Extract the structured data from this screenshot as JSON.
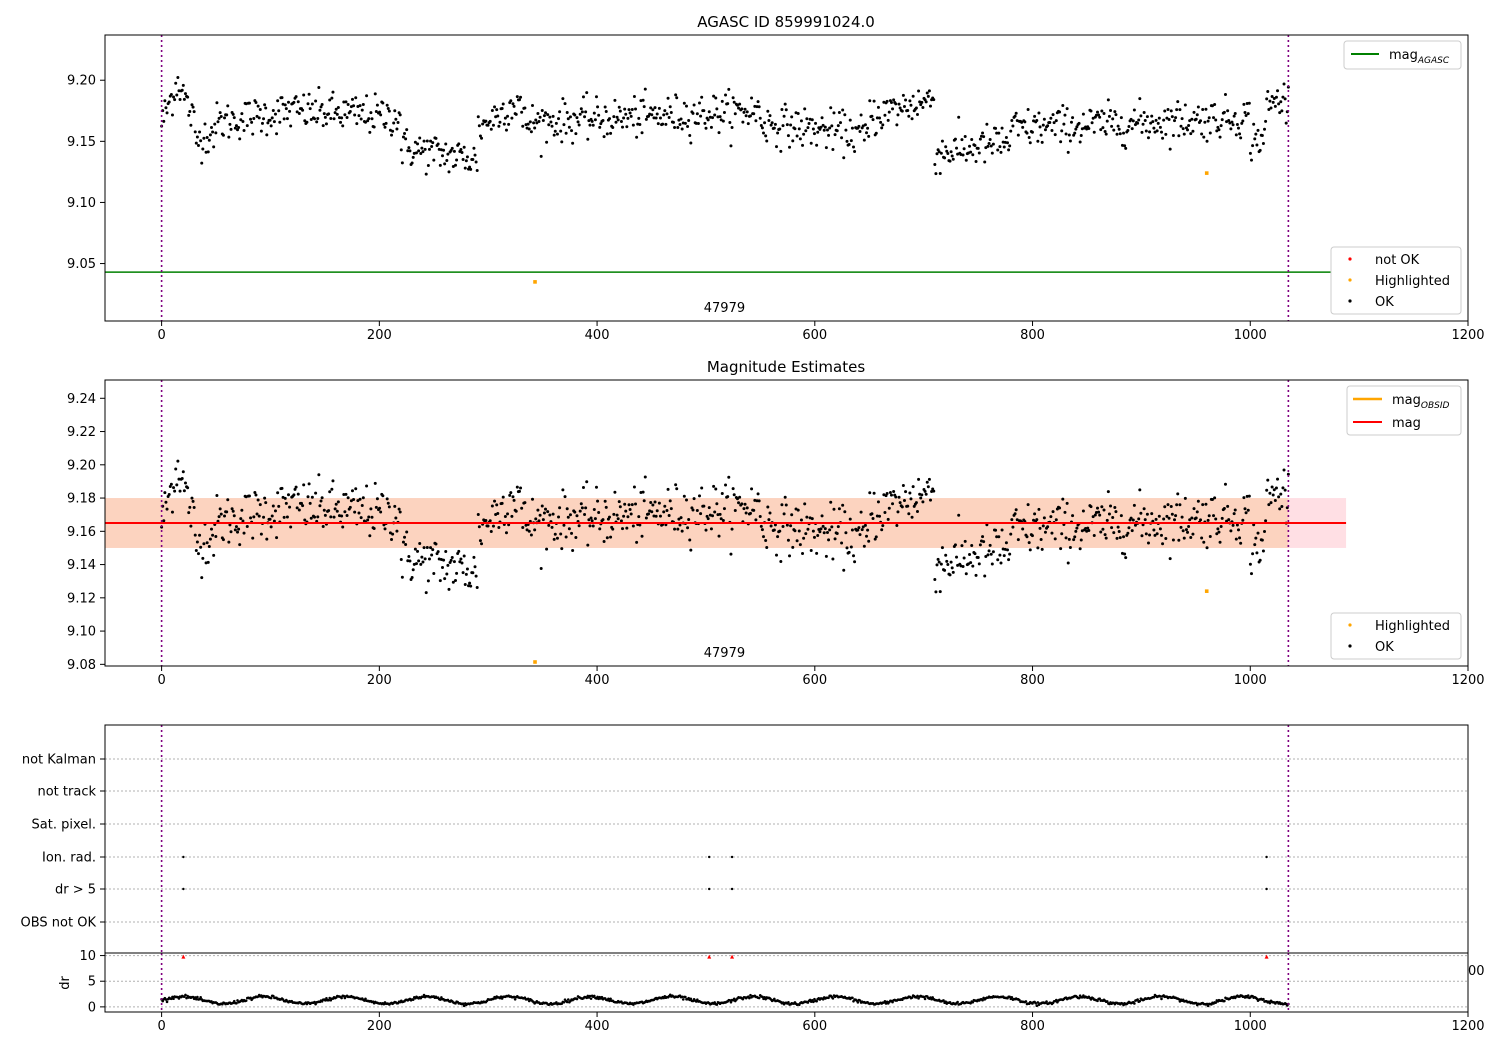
{
  "panel1": {
    "title": "AGASC ID 859991024.0",
    "obsid_label": "47979",
    "legend_lines": [
      {
        "label": "mag",
        "sub": "AGASC",
        "color": "#008000"
      }
    ],
    "legend_markers": [
      {
        "label": "not OK",
        "color": "#ff0000"
      },
      {
        "label": "Highlighted",
        "color": "#ffa500"
      },
      {
        "label": "OK",
        "color": "#000000"
      }
    ]
  },
  "panel2": {
    "title": "Magnitude Estimates",
    "obsid_label": "47979",
    "legend_lines": [
      {
        "label": "mag",
        "sub": "OBSID",
        "color": "#ffa500"
      },
      {
        "label": "mag",
        "sub": "",
        "color": "#ff0000"
      }
    ],
    "legend_markers": [
      {
        "label": "Highlighted",
        "color": "#ffa500"
      },
      {
        "label": "OK",
        "color": "#000000"
      }
    ]
  },
  "panel3": {
    "flag_labels": [
      "not Kalman",
      "not track",
      "Sat. pixel.",
      "Ion. rad.",
      "dr > 5",
      "OBS not OK"
    ],
    "dr_ylabel": "dr",
    "clipped_tick": "00"
  },
  "chart_data": [
    {
      "type": "scatter",
      "title": "AGASC ID 859991024.0",
      "xlim": [
        -52,
        1200
      ],
      "ylim": [
        9.003,
        9.237
      ],
      "xticks": [
        0,
        200,
        400,
        600,
        800,
        1000,
        1200
      ],
      "yticks": [
        9.05,
        9.1,
        9.15,
        9.2
      ],
      "mag_agasc": 9.043,
      "obs_bounds": [
        0,
        1035
      ],
      "highlighted_points": [
        {
          "x": 343,
          "y": 9.035
        },
        {
          "x": 960,
          "y": 9.124
        }
      ],
      "ok_series_profile": {
        "x_range": [
          0,
          1035
        ],
        "segments": [
          {
            "x": [
              0,
              15
            ],
            "y": [
              9.165,
              9.2
            ]
          },
          {
            "x": [
              15,
              30
            ],
            "y": [
              9.2,
              9.165
            ]
          },
          {
            "x": [
              30,
              50
            ],
            "y": [
              9.15,
              9.16
            ]
          },
          {
            "x": [
              50,
              120
            ],
            "y": [
              9.165,
              9.175
            ]
          },
          {
            "x": [
              120,
              220
            ],
            "y": [
              9.175,
              9.17
            ]
          },
          {
            "x": [
              220,
              290
            ],
            "y": [
              9.145,
              9.135
            ]
          },
          {
            "x": [
              290,
              330
            ],
            "y": [
              9.16,
              9.185
            ]
          },
          {
            "x": [
              330,
              550
            ],
            "y": [
              9.165,
              9.175
            ]
          },
          {
            "x": [
              550,
              650
            ],
            "y": [
              9.165,
              9.155
            ]
          },
          {
            "x": [
              650,
              710
            ],
            "y": [
              9.17,
              9.185
            ]
          },
          {
            "x": [
              710,
              780
            ],
            "y": [
              9.14,
              9.15
            ]
          },
          {
            "x": [
              780,
              1000
            ],
            "y": [
              9.16,
              9.17
            ]
          },
          {
            "x": [
              960,
              1015
            ],
            "y": [
              9.14,
              9.155
            ]
          },
          {
            "x": [
              1015,
              1035
            ],
            "y": [
              9.18,
              9.185
            ]
          }
        ],
        "scatter_sd": 0.009,
        "count": 1040
      }
    },
    {
      "type": "scatter",
      "title": "Magnitude Estimates",
      "xlim": [
        -52,
        1200
      ],
      "ylim": [
        9.079,
        9.251
      ],
      "xticks": [
        0,
        200,
        400,
        600,
        800,
        1000,
        1200
      ],
      "yticks": [
        9.08,
        9.1,
        9.12,
        9.14,
        9.16,
        9.18,
        9.2,
        9.22,
        9.24
      ],
      "mag": 9.165,
      "mag_band": [
        9.15,
        9.18
      ],
      "obs_bounds": [
        0,
        1035
      ],
      "highlighted_points": [
        {
          "x": 343,
          "y": 9.081
        },
        {
          "x": 960,
          "y": 9.124
        }
      ]
    },
    {
      "type": "scatter",
      "xlim": [
        -52,
        1200
      ],
      "flag_points": [
        {
          "flag": "Ion. rad.",
          "x": [
            20,
            503,
            524,
            1015
          ]
        },
        {
          "flag": "dr > 5",
          "x": [
            20,
            503,
            524,
            1015
          ]
        }
      ],
      "dr_ylim": [
        -1,
        10.5
      ],
      "dr_yticks": [
        0,
        5,
        10
      ],
      "dr_high_points": [
        {
          "x": 20,
          "y": 9.8
        },
        {
          "x": 503,
          "y": 9.8
        },
        {
          "x": 524,
          "y": 9.8
        },
        {
          "x": 1015,
          "y": 9.8
        }
      ],
      "dr_series_profile": {
        "x_range": [
          0,
          1035
        ],
        "mean": 1.3,
        "amplitude": 0.7,
        "period": 75
      },
      "xticks": [
        0,
        200,
        400,
        600,
        800,
        1000,
        1200
      ]
    }
  ],
  "colors": {
    "ok": "#000000",
    "highlighted": "#ffa500",
    "not_ok": "#ff0000",
    "agasc_line": "#008000",
    "mag_line": "#ff0000",
    "band_fill": "#ffdfe4",
    "band_overlap": "#fcd3bf",
    "obs_bound": "#800080"
  }
}
